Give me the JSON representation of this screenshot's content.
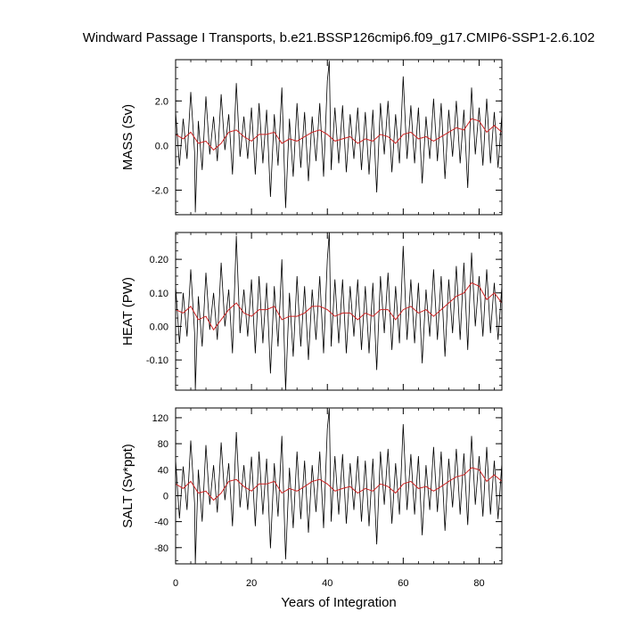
{
  "chart_data": {
    "type": "line",
    "title": "Windward Passage I Transports, b.e21.BSSP126cmip6.f09_g17.CMIP6-SSP1-2.6.102",
    "xlabel": "Years of Integration",
    "xlim": [
      0,
      86
    ],
    "xticks": [
      "0",
      "20",
      "40",
      "60",
      "80"
    ],
    "xtick_values": [
      0,
      20,
      40,
      60,
      80
    ],
    "colors": {
      "monthly": "#000000",
      "annual": "#cc2222",
      "frame": "#000000"
    },
    "panels": [
      {
        "id": "mass",
        "ylabel": "MASS (Sv)",
        "ylim": [
          -3.1,
          3.85
        ],
        "yticks": [
          "2.0",
          "0.0",
          "-2.0"
        ],
        "ytick_values": [
          2.0,
          0.0,
          -2.0
        ],
        "minor_step": 0.5,
        "series": [
          {
            "kind": "monthly",
            "x": [
              0,
              1,
              2,
              3,
              4,
              5,
              5.2,
              6,
              7,
              8,
              9,
              10,
              11,
              12,
              13,
              14,
              15,
              16,
              17,
              18,
              19,
              20,
              21,
              22,
              23,
              24,
              25,
              26,
              27,
              28,
              29,
              30,
              31,
              32,
              33,
              34,
              35,
              36,
              37,
              38,
              39,
              40,
              40.5,
              41,
              42,
              43,
              44,
              45,
              46,
              47,
              48,
              49,
              50,
              51,
              52,
              53,
              54,
              55,
              56,
              57,
              58,
              59,
              60,
              61,
              62,
              63,
              64,
              65,
              66,
              67,
              68,
              69,
              70,
              71,
              72,
              73,
              74,
              75,
              76,
              77,
              78,
              79,
              80,
              81,
              82,
              83,
              84,
              85,
              86
            ],
            "y": [
              1.5,
              -0.9,
              1.2,
              -0.6,
              2.4,
              -0.3,
              -3.0,
              1.1,
              -1.1,
              2.2,
              -0.4,
              1.3,
              -0.7,
              2.3,
              -0.2,
              1.4,
              -1.3,
              2.8,
              -0.5,
              1.3,
              -0.6,
              1.7,
              -1.3,
              1.9,
              -0.8,
              1.6,
              -2.3,
              1.4,
              -0.9,
              2.6,
              -2.8,
              1.2,
              -1.4,
              1.9,
              -1.0,
              1.5,
              -1.6,
              1.3,
              -0.7,
              1.9,
              -1.4,
              2.9,
              3.8,
              -1.1,
              1.7,
              -0.8,
              1.8,
              -1.2,
              1.4,
              -0.6,
              1.7,
              -1.1,
              1.5,
              -1.3,
              1.6,
              -2.1,
              1.9,
              -0.4,
              2.0,
              -1.2,
              1.4,
              -0.8,
              3.1,
              -0.6,
              1.8,
              -0.8,
              1.7,
              -1.7,
              1.3,
              -0.6,
              2.1,
              -0.7,
              1.9,
              -1.5,
              1.6,
              -0.5,
              2.0,
              -0.8,
              1.6,
              -1.9,
              2.6,
              -0.4,
              1.7,
              -0.9,
              2.1,
              -0.8,
              1.5,
              -1.0,
              1.4
            ]
          },
          {
            "kind": "annual",
            "x": [
              0,
              2,
              4,
              6,
              8,
              10,
              12,
              14,
              16,
              18,
              20,
              22,
              24,
              26,
              28,
              30,
              32,
              34,
              36,
              38,
              40,
              42,
              44,
              46,
              48,
              50,
              52,
              54,
              56,
              58,
              60,
              62,
              64,
              66,
              68,
              70,
              72,
              74,
              76,
              78,
              80,
              82,
              84,
              86
            ],
            "y": [
              0.5,
              0.3,
              0.6,
              0.1,
              0.2,
              -0.2,
              0.1,
              0.6,
              0.7,
              0.4,
              0.2,
              0.5,
              0.5,
              0.6,
              0.1,
              0.3,
              0.2,
              0.4,
              0.6,
              0.7,
              0.5,
              0.2,
              0.3,
              0.4,
              0.1,
              0.3,
              0.2,
              0.5,
              0.4,
              0.1,
              0.5,
              0.6,
              0.3,
              0.4,
              0.2,
              0.4,
              0.6,
              0.8,
              0.7,
              1.2,
              1.1,
              0.6,
              0.9,
              0.6
            ]
          }
        ]
      },
      {
        "id": "heat",
        "ylabel": "HEAT (PW)",
        "ylim": [
          -0.19,
          0.28
        ],
        "yticks": [
          "0.20",
          "0.10",
          "0.00",
          "-0.10"
        ],
        "ytick_values": [
          0.2,
          0.1,
          0.0,
          -0.1
        ],
        "minor_step": 0.025,
        "series": [
          {
            "kind": "monthly",
            "x": [
              0,
              1,
              2,
              3,
              4,
              5,
              5.2,
              6,
              7,
              8,
              9,
              10,
              11,
              12,
              13,
              14,
              15,
              16,
              17,
              18,
              19,
              20,
              21,
              22,
              23,
              24,
              25,
              26,
              27,
              28,
              29,
              30,
              31,
              32,
              33,
              34,
              35,
              36,
              37,
              38,
              39,
              40,
              40.5,
              41,
              42,
              43,
              44,
              45,
              46,
              47,
              48,
              49,
              50,
              51,
              52,
              53,
              54,
              55,
              56,
              57,
              58,
              59,
              60,
              61,
              62,
              63,
              64,
              65,
              66,
              67,
              68,
              69,
              70,
              71,
              72,
              73,
              74,
              75,
              76,
              77,
              78,
              79,
              80,
              81,
              82,
              83,
              84,
              85,
              86
            ],
            "y": [
              0.12,
              -0.05,
              0.1,
              -0.03,
              0.17,
              -0.02,
              -0.19,
              0.09,
              -0.06,
              0.16,
              -0.01,
              0.1,
              -0.04,
              0.19,
              0.0,
              0.11,
              -0.08,
              0.27,
              -0.02,
              0.11,
              -0.03,
              0.14,
              -0.08,
              0.15,
              -0.05,
              0.13,
              -0.14,
              0.12,
              -0.06,
              0.2,
              -0.19,
              0.1,
              -0.09,
              0.15,
              -0.06,
              0.12,
              -0.1,
              0.11,
              -0.04,
              0.15,
              -0.08,
              0.2,
              0.28,
              -0.06,
              0.14,
              -0.05,
              0.14,
              -0.08,
              0.12,
              -0.03,
              0.14,
              -0.07,
              0.12,
              -0.08,
              0.13,
              -0.13,
              0.15,
              -0.02,
              0.16,
              -0.07,
              0.12,
              -0.05,
              0.24,
              -0.04,
              0.14,
              -0.05,
              0.13,
              -0.11,
              0.11,
              -0.03,
              0.17,
              -0.04,
              0.15,
              -0.09,
              0.14,
              -0.02,
              0.18,
              -0.04,
              0.19,
              -0.07,
              0.22,
              0.0,
              0.15,
              -0.03,
              0.17,
              -0.02,
              0.13,
              -0.04,
              0.12
            ]
          },
          {
            "kind": "annual",
            "x": [
              0,
              2,
              4,
              6,
              8,
              10,
              12,
              14,
              16,
              18,
              20,
              22,
              24,
              26,
              28,
              30,
              32,
              34,
              36,
              38,
              40,
              42,
              44,
              46,
              48,
              50,
              52,
              54,
              56,
              58,
              60,
              62,
              64,
              66,
              68,
              70,
              72,
              74,
              76,
              78,
              80,
              82,
              84,
              86
            ],
            "y": [
              0.05,
              0.04,
              0.06,
              0.02,
              0.03,
              -0.01,
              0.02,
              0.05,
              0.07,
              0.04,
              0.03,
              0.05,
              0.05,
              0.06,
              0.02,
              0.03,
              0.03,
              0.04,
              0.06,
              0.06,
              0.05,
              0.03,
              0.04,
              0.04,
              0.02,
              0.04,
              0.03,
              0.05,
              0.05,
              0.02,
              0.05,
              0.06,
              0.04,
              0.05,
              0.03,
              0.05,
              0.07,
              0.09,
              0.1,
              0.13,
              0.12,
              0.08,
              0.1,
              0.07
            ]
          }
        ]
      },
      {
        "id": "salt",
        "ylabel": "SALT (Sv*ppt)",
        "ylim": [
          -105,
          135
        ],
        "yticks": [
          "120",
          "80",
          "40",
          "0",
          "-40",
          "-80"
        ],
        "ytick_values": [
          120,
          80,
          40,
          0,
          -40,
          -80
        ],
        "minor_step": 20,
        "series": [
          {
            "kind": "monthly",
            "x": [
              0,
              1,
              2,
              3,
              4,
              5,
              5.2,
              6,
              7,
              8,
              9,
              10,
              11,
              12,
              13,
              14,
              15,
              16,
              17,
              18,
              19,
              20,
              21,
              22,
              23,
              24,
              25,
              26,
              27,
              28,
              29,
              30,
              31,
              32,
              33,
              34,
              35,
              36,
              37,
              38,
              39,
              40,
              40.5,
              41,
              42,
              43,
              44,
              45,
              46,
              47,
              48,
              49,
              50,
              51,
              52,
              53,
              54,
              55,
              56,
              57,
              58,
              59,
              60,
              61,
              62,
              63,
              64,
              65,
              66,
              67,
              68,
              69,
              70,
              71,
              72,
              73,
              74,
              75,
              76,
              77,
              78,
              79,
              80,
              81,
              82,
              83,
              84,
              85,
              86
            ],
            "y": [
              55,
              -35,
              45,
              -22,
              85,
              -12,
              -105,
              40,
              -40,
              78,
              -14,
              47,
              -26,
              82,
              -7,
              50,
              -47,
              98,
              -18,
              47,
              -22,
              60,
              -47,
              68,
              -29,
              57,
              -81,
              50,
              -32,
              92,
              -98,
              43,
              -50,
              68,
              -36,
              54,
              -57,
              47,
              -25,
              68,
              -50,
              103,
              134,
              -40,
              61,
              -29,
              64,
              -43,
              50,
              -22,
              61,
              -40,
              54,
              -47,
              57,
              -75,
              68,
              -14,
              72,
              -43,
              50,
              -29,
              110,
              -22,
              64,
              -29,
              61,
              -61,
              47,
              -22,
              75,
              -25,
              68,
              -54,
              57,
              -18,
              72,
              -29,
              65,
              -45,
              92,
              -14,
              61,
              -32,
              75,
              -29,
              54,
              -36,
              50
            ]
          },
          {
            "kind": "annual",
            "x": [
              0,
              2,
              4,
              6,
              8,
              10,
              12,
              14,
              16,
              18,
              20,
              22,
              24,
              26,
              28,
              30,
              32,
              34,
              36,
              38,
              40,
              42,
              44,
              46,
              48,
              50,
              52,
              54,
              56,
              58,
              60,
              62,
              64,
              66,
              68,
              70,
              72,
              74,
              76,
              78,
              80,
              82,
              84,
              86
            ],
            "y": [
              18,
              11,
              22,
              4,
              7,
              -7,
              4,
              22,
              25,
              14,
              7,
              18,
              18,
              22,
              4,
              11,
              7,
              14,
              22,
              25,
              18,
              7,
              11,
              14,
              4,
              11,
              7,
              18,
              14,
              4,
              18,
              22,
              11,
              14,
              7,
              14,
              22,
              29,
              32,
              43,
              40,
              22,
              32,
              22
            ]
          }
        ]
      }
    ]
  }
}
